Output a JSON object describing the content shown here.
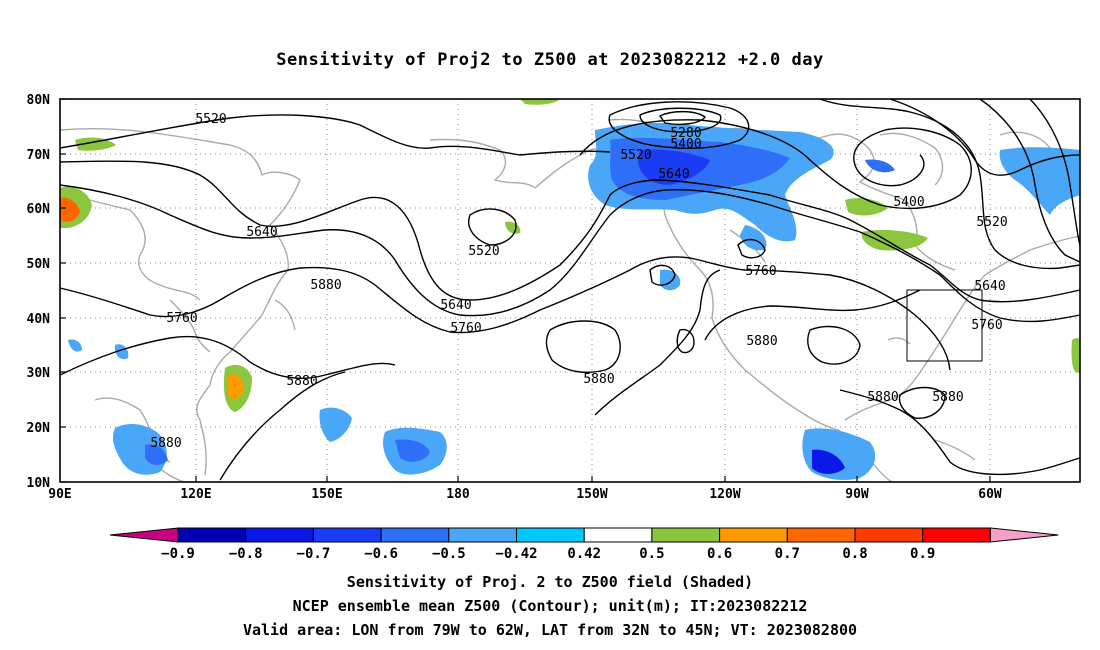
{
  "title": "Sensitivity of Proj2 to Z500 at 2023082212 +2.0 day",
  "lat_labels": [
    "80N",
    "70N",
    "60N",
    "50N",
    "40N",
    "30N",
    "20N",
    "10N"
  ],
  "lon_labels": [
    "90E",
    "120E",
    "150E",
    "180",
    "150W",
    "120W",
    "90W",
    "60W"
  ],
  "contour_labels": {
    "c5520a": "5520",
    "c5520b": "5520",
    "c5520c": "5520",
    "c5520d": "5520",
    "c5280": "5280",
    "c5400a": "5400",
    "c5400b": "5400",
    "c5640a": "5640",
    "c5640b": "5640",
    "c5640c": "5640",
    "c5640d": "5640",
    "c5760a": "5760",
    "c5760b": "5760",
    "c5760c": "5760",
    "c5760d": "5760",
    "c5880a": "5880",
    "c5880b": "5880",
    "c5880c": "5880",
    "c5880d": "5880",
    "c5880e": "5880",
    "c5880f": "5880",
    "c5880g": "5880"
  },
  "colorbar": {
    "labels": [
      "-0.9",
      "-0.8",
      "-0.7",
      "-0.6",
      "-0.5",
      "-0.42",
      "0.42",
      "0.5",
      "0.6",
      "0.7",
      "0.8",
      "0.9"
    ],
    "colors": [
      "#c6007f",
      "#0000b4",
      "#0a19e6",
      "#1b3cf5",
      "#2f6ef6",
      "#4aa6f6",
      "#01c8fb",
      "#ffffff",
      "#8cc63f",
      "#ff9b00",
      "#ff6600",
      "#ff3a00",
      "#ff0000",
      "#f79fc6"
    ]
  },
  "footer": {
    "line1": "Sensitivity of Proj. 2 to Z500 field (Shaded)",
    "line2": "NCEP ensemble mean Z500 (Contour); unit(m); IT:2023082212",
    "line3": "Valid area: LON from 79W to 62W, LAT from 32N to 45N; VT: 2023082800"
  }
}
